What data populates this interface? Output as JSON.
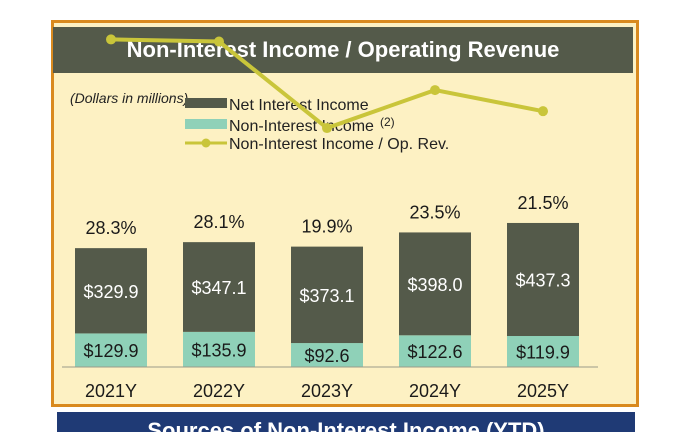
{
  "chart_data": {
    "type": "bar",
    "stacked": true,
    "title": "Non-Interest Income / Operating Revenue",
    "unit_note": "(Dollars in millions)",
    "categories": [
      "2021Y",
      "2022Y",
      "2023Y",
      "2024Y",
      "2025Y"
    ],
    "series": [
      {
        "name": "Net Interest Income",
        "values": [
          329.9,
          347.1,
          373.1,
          398.0,
          437.3
        ],
        "labels": [
          "$329.9",
          "$347.1",
          "$373.1",
          "$398.0",
          "$437.3"
        ],
        "color": "#545a4a"
      },
      {
        "name": "Non-Interest Income",
        "superscript": "(2)",
        "values": [
          129.9,
          135.9,
          92.6,
          122.6,
          119.9
        ],
        "labels": [
          "$129.9",
          "$135.9",
          "$92.6",
          "$122.6",
          "$119.9"
        ],
        "color": "#8fd1b8"
      },
      {
        "name": "Non-Interest Income / Op. Rev.",
        "type": "line",
        "values": [
          28.3,
          28.1,
          19.9,
          23.5,
          21.5
        ],
        "labels": [
          "28.3%",
          "28.1%",
          "19.9%",
          "23.5%",
          "21.5%"
        ],
        "color": "#c9c53a"
      }
    ],
    "legend_position": "top-left",
    "grid": false
  },
  "footer": {
    "title": "Sources of Non-Interest Income (YTD)"
  }
}
